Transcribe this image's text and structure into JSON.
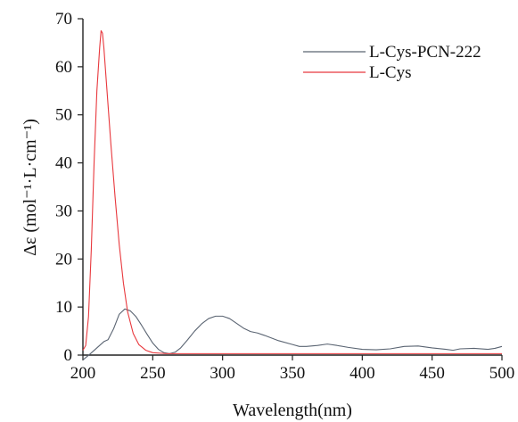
{
  "chart_data": {
    "type": "line",
    "title": "",
    "xlabel": "Wavelength(nm)",
    "ylabel": "Δε (mol⁻¹·L·cm⁻¹)",
    "xlim": [
      200,
      500
    ],
    "ylim": [
      0,
      70
    ],
    "x_ticks": [
      200,
      250,
      300,
      350,
      400,
      450,
      500
    ],
    "y_ticks": [
      0,
      10,
      20,
      30,
      40,
      50,
      60,
      70
    ],
    "grid": false,
    "legend_position": "top-right",
    "series": [
      {
        "name": "L-Cys-PCN-222",
        "color": "#5a6472",
        "points": [
          [
            200,
            -1.0
          ],
          [
            205,
            0.2
          ],
          [
            210,
            1.5
          ],
          [
            215,
            2.8
          ],
          [
            218,
            3.2
          ],
          [
            222,
            5.5
          ],
          [
            226,
            8.5
          ],
          [
            230,
            9.6
          ],
          [
            234,
            9.2
          ],
          [
            238,
            8.0
          ],
          [
            242,
            6.2
          ],
          [
            246,
            4.3
          ],
          [
            250,
            2.5
          ],
          [
            254,
            1.2
          ],
          [
            258,
            0.5
          ],
          [
            262,
            0.3
          ],
          [
            266,
            0.6
          ],
          [
            270,
            1.5
          ],
          [
            275,
            3.2
          ],
          [
            280,
            5.0
          ],
          [
            285,
            6.5
          ],
          [
            290,
            7.6
          ],
          [
            295,
            8.1
          ],
          [
            300,
            8.1
          ],
          [
            305,
            7.6
          ],
          [
            310,
            6.6
          ],
          [
            315,
            5.6
          ],
          [
            320,
            4.9
          ],
          [
            325,
            4.6
          ],
          [
            330,
            4.1
          ],
          [
            340,
            3.0
          ],
          [
            350,
            2.2
          ],
          [
            355,
            1.8
          ],
          [
            360,
            1.8
          ],
          [
            368,
            2.0
          ],
          [
            375,
            2.3
          ],
          [
            382,
            2.0
          ],
          [
            390,
            1.6
          ],
          [
            400,
            1.2
          ],
          [
            410,
            1.1
          ],
          [
            420,
            1.3
          ],
          [
            430,
            1.8
          ],
          [
            440,
            1.9
          ],
          [
            450,
            1.5
          ],
          [
            460,
            1.2
          ],
          [
            465,
            1.0
          ],
          [
            470,
            1.3
          ],
          [
            480,
            1.4
          ],
          [
            490,
            1.2
          ],
          [
            495,
            1.4
          ],
          [
            500,
            1.8
          ]
        ]
      },
      {
        "name": "L-Cys",
        "color": "#e8383d",
        "points": [
          [
            200,
            1.0
          ],
          [
            202,
            2.0
          ],
          [
            204,
            8.0
          ],
          [
            206,
            22.0
          ],
          [
            208,
            40.0
          ],
          [
            210,
            55.0
          ],
          [
            212,
            64.0
          ],
          [
            213,
            67.5
          ],
          [
            214,
            67.0
          ],
          [
            215,
            64.0
          ],
          [
            217,
            56.0
          ],
          [
            220,
            44.0
          ],
          [
            223,
            33.0
          ],
          [
            226,
            23.0
          ],
          [
            229,
            15.0
          ],
          [
            232,
            9.0
          ],
          [
            236,
            4.5
          ],
          [
            240,
            2.2
          ],
          [
            245,
            1.0
          ],
          [
            250,
            0.5
          ],
          [
            260,
            0.3
          ],
          [
            275,
            0.3
          ],
          [
            300,
            0.3
          ],
          [
            350,
            0.3
          ],
          [
            400,
            0.3
          ],
          [
            450,
            0.3
          ],
          [
            500,
            0.3
          ]
        ]
      }
    ]
  }
}
